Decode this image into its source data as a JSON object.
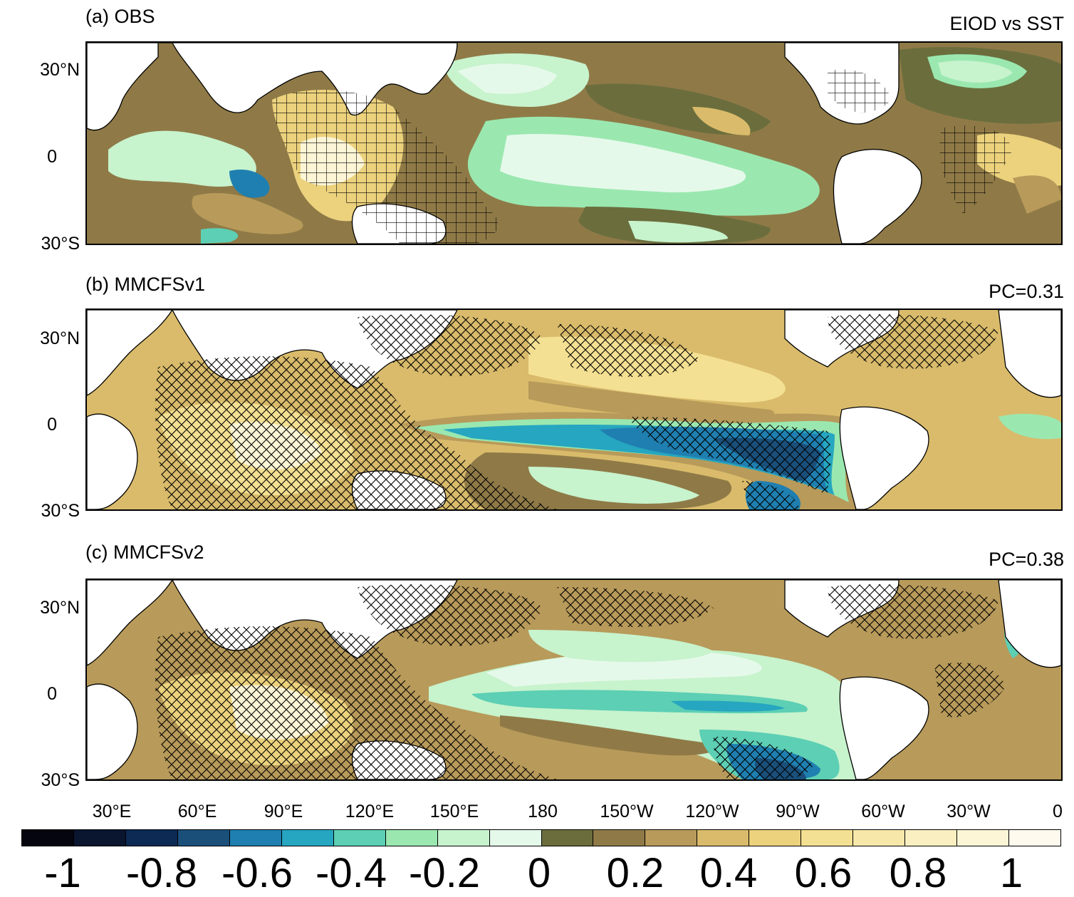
{
  "panels": [
    {
      "id": "a",
      "title": "(a) OBS",
      "right_text": "EIOD vs SST"
    },
    {
      "id": "b",
      "title": "(b) MMCFSv1",
      "right_text": "PC=0.31"
    },
    {
      "id": "c",
      "title": "(c) MMCFSv2",
      "right_text": "PC=0.38"
    }
  ],
  "lat_labels": [
    "30°N",
    "0",
    "30°S"
  ],
  "lon_labels": [
    "30°E",
    "60°E",
    "90°E",
    "120°E",
    "150°E",
    "180",
    "150°W",
    "120°W",
    "90°W",
    "60°W",
    "30°W",
    "0"
  ],
  "colorbar": {
    "labels": [
      "-1",
      "-0.8",
      "-0.6",
      "-0.4",
      "-0.2",
      "0",
      "0.2",
      "0.4",
      "0.6",
      "0.8",
      "1"
    ],
    "colors": [
      "#050510",
      "#0a1530",
      "#0d2a55",
      "#1a4f7a",
      "#1f7fb0",
      "#26a6c0",
      "#5ccfb4",
      "#9ae8b0",
      "#c7f3cd",
      "#e5f9ea",
      "#6b6d3d",
      "#8f7a47",
      "#b89a5a",
      "#d9bb6b",
      "#ecd27d",
      "#f4e092",
      "#f7e8aa",
      "#faefc0",
      "#fcf5d6",
      "#fefbee"
    ]
  },
  "colors": {
    "land": "#ffffff",
    "coast": "#000000",
    "hatch": "#000000"
  }
}
